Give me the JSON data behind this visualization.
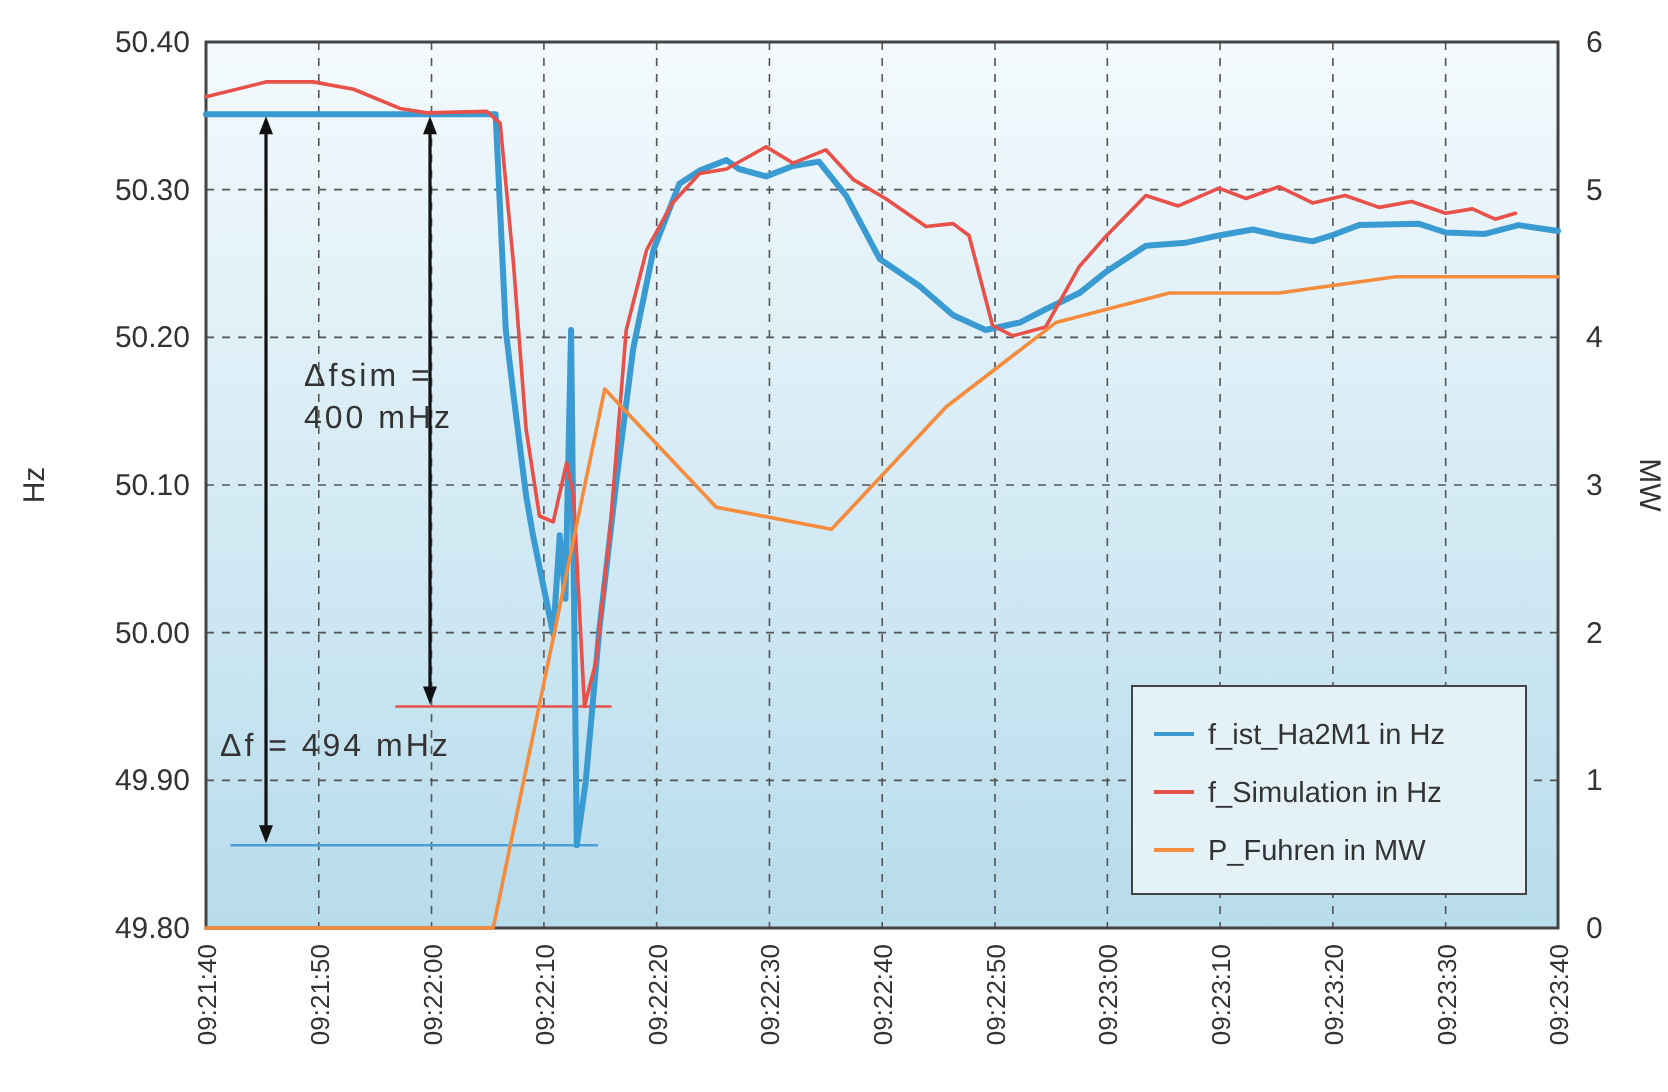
{
  "chart_data": {
    "type": "line",
    "ylabel": "Hz",
    "y2label": "MW",
    "xlim": [
      9.36111,
      9.39444
    ],
    "xticks": [
      {
        "value": 9.36111,
        "label": "09:21:40"
      },
      {
        "value": 9.36389,
        "label": "09:21:50"
      },
      {
        "value": 9.36667,
        "label": "09:22:00"
      },
      {
        "value": 9.36944,
        "label": "09:22:10"
      },
      {
        "value": 9.37222,
        "label": "09:22:20"
      },
      {
        "value": 9.375,
        "label": "09:22:30"
      },
      {
        "value": 9.37778,
        "label": "09:22:40"
      },
      {
        "value": 9.38056,
        "label": "09:22:50"
      },
      {
        "value": 9.38333,
        "label": "09:23:00"
      },
      {
        "value": 9.38611,
        "label": "09:23:10"
      },
      {
        "value": 9.38889,
        "label": "09:23:20"
      },
      {
        "value": 9.39167,
        "label": "09:23:30"
      },
      {
        "value": 9.39444,
        "label": "09:23:40"
      }
    ],
    "ylim": [
      49.8,
      50.4
    ],
    "yticks": [
      {
        "value": 49.8,
        "label": "49.80"
      },
      {
        "value": 49.9,
        "label": "49.90"
      },
      {
        "value": 50.0,
        "label": "50.00"
      },
      {
        "value": 50.1,
        "label": "50.10"
      },
      {
        "value": 50.2,
        "label": "50.20"
      },
      {
        "value": 50.3,
        "label": "50.30"
      },
      {
        "value": 50.4,
        "label": "50.40"
      }
    ],
    "y2lim": [
      0,
      6
    ],
    "y2ticks": [
      0,
      1,
      2,
      3,
      4,
      5,
      6
    ],
    "grid": true,
    "legend": "bottom right",
    "series": [
      {
        "name": "f_ist_Ha2M1 in Hz",
        "color": "#3a9ad2",
        "x": [
          9.36111,
          9.36825,
          9.3685,
          9.36869,
          9.369,
          9.36917,
          9.36947,
          9.36967,
          9.36983,
          9.36997,
          9.37011,
          9.37025,
          9.37047,
          9.37081,
          9.37122,
          9.37164,
          9.37214,
          9.37278,
          9.37328,
          9.37394,
          9.37425,
          9.37492,
          9.37558,
          9.37622,
          9.37689,
          9.37772,
          9.37869,
          9.37953,
          9.38033,
          9.38117,
          9.38181,
          9.38264,
          9.38328,
          9.38428,
          9.38525,
          9.38608,
          9.38692,
          9.38756,
          9.38839,
          9.38886,
          9.38953,
          9.391,
          9.39167,
          9.39264,
          9.39347,
          9.39444
        ],
        "values": [
          50.351,
          50.351,
          50.205,
          50.161,
          50.093,
          50.066,
          50.026,
          49.999,
          50.066,
          50.023,
          50.205,
          49.856,
          49.899,
          50.003,
          50.101,
          50.192,
          50.259,
          50.304,
          50.313,
          50.32,
          50.314,
          50.309,
          50.316,
          50.319,
          50.296,
          50.253,
          50.235,
          50.215,
          50.205,
          50.21,
          50.219,
          50.23,
          50.244,
          50.262,
          50.264,
          50.269,
          50.273,
          50.269,
          50.265,
          50.269,
          50.276,
          50.277,
          50.271,
          50.27,
          50.276,
          50.272
        ]
      },
      {
        "name": "f_Simulation in Hz",
        "color": "#e8504a",
        "x": [
          9.36111,
          9.36261,
          9.36375,
          9.36475,
          9.36589,
          9.36656,
          9.36803,
          9.36836,
          9.36869,
          9.369,
          9.36933,
          9.36967,
          9.37,
          9.37017,
          9.37044,
          9.37072,
          9.37106,
          9.37147,
          9.37197,
          9.37261,
          9.37328,
          9.37394,
          9.37492,
          9.37558,
          9.37639,
          9.37706,
          9.37786,
          9.37886,
          9.37953,
          9.37992,
          9.3805,
          9.381,
          9.38181,
          9.38264,
          9.38328,
          9.38428,
          9.38508,
          9.38608,
          9.38675,
          9.38756,
          9.38839,
          9.38919,
          9.39003,
          9.39083,
          9.39167,
          9.39233,
          9.39289,
          9.39339
        ],
        "values": [
          50.363,
          50.373,
          50.373,
          50.368,
          50.355,
          50.352,
          50.353,
          50.345,
          50.25,
          50.138,
          50.079,
          50.075,
          50.115,
          50.093,
          49.95,
          49.98,
          50.066,
          50.205,
          50.259,
          50.291,
          50.311,
          50.314,
          50.329,
          50.318,
          50.327,
          50.307,
          50.294,
          50.275,
          50.277,
          50.269,
          50.208,
          50.201,
          50.207,
          50.248,
          50.268,
          50.296,
          50.289,
          50.301,
          50.294,
          50.302,
          50.291,
          50.296,
          50.288,
          50.292,
          50.284,
          50.287,
          50.28,
          50.284
        ]
      },
      {
        "name": "P_Fuhren in MW",
        "color": "#f58b3c",
        "axis": "y2",
        "x": [
          9.36111,
          9.36819,
          9.37094,
          9.37369,
          9.37653,
          9.37936,
          9.38206,
          9.38486,
          9.38756,
          9.39044,
          9.39444
        ],
        "values": [
          0,
          0,
          3.65,
          2.85,
          2.7,
          3.53,
          4.1,
          4.3,
          4.3,
          4.41,
          4.41
        ]
      }
    ],
    "ref_lines": [
      {
        "axis": "y",
        "value": 49.856,
        "color": "#4a9fd8"
      },
      {
        "axis": "y",
        "value": 49.95,
        "color": "#e8504a"
      }
    ],
    "annotations": [
      "Δf = 494 mHz",
      "Δfsim =\n400 mHz"
    ]
  }
}
